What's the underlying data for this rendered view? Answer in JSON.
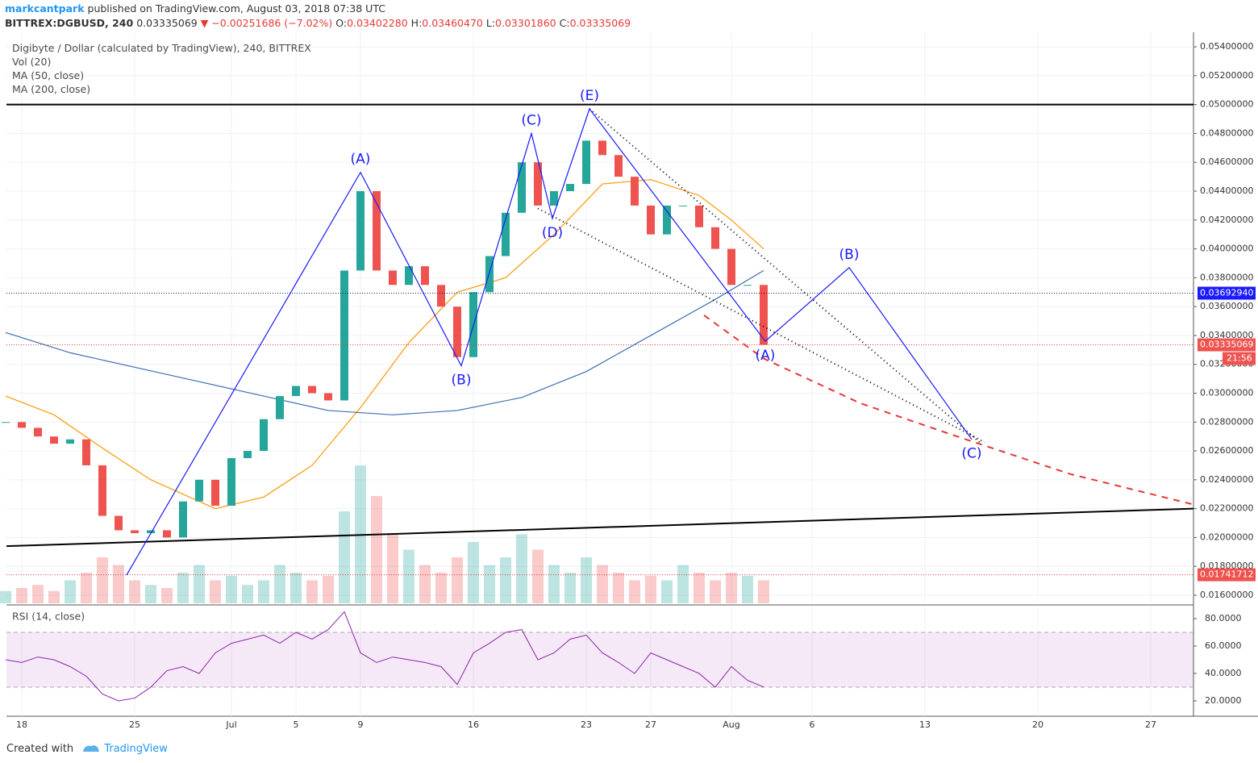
{
  "header": {
    "author": "markcantpark",
    "published": "published on TradingView.com, August 03, 2018 07:38 UTC",
    "symbol": "BITTREX:DGBUSD, 240",
    "last": "0.03335069",
    "change": "▼ −0.00251686 (−7.02%)",
    "ohlc": [
      {
        "label": "O:",
        "value": "0.03402280"
      },
      {
        "label": "H:",
        "value": "0.03460470"
      },
      {
        "label": "L:",
        "value": "0.03301860"
      },
      {
        "label": "C:",
        "value": "0.03335069"
      }
    ]
  },
  "legend": [
    "Digibyte / Dollar (calculated by TradingView), 240, BITTREX",
    "Vol (20)",
    "MA (50, close)",
    "MA (200, close)"
  ],
  "footer": {
    "created": "Created with",
    "brand": "TradingView"
  },
  "chart_data": [
    {
      "type": "candlestick",
      "grid": true,
      "up_color": "#26a69a",
      "down_color": "#ef5350",
      "xlim": [
        -0.95,
        72.65
      ],
      "ylim": [
        0.01544,
        0.05501
      ],
      "xticks": [
        {
          "value": 0,
          "label": "18"
        },
        {
          "value": 7,
          "label": "25"
        },
        {
          "value": 13,
          "label": "Jul"
        },
        {
          "value": 17,
          "label": "5"
        },
        {
          "value": 21,
          "label": "9"
        },
        {
          "value": 28,
          "label": "16"
        },
        {
          "value": 35,
          "label": "23"
        },
        {
          "value": 39,
          "label": "27"
        },
        {
          "value": 44,
          "label": "Aug"
        },
        {
          "value": 49,
          "label": "6"
        },
        {
          "value": 56,
          "label": "13"
        },
        {
          "value": 63,
          "label": "20"
        },
        {
          "value": 70,
          "label": "27"
        }
      ],
      "yticks": [
        {
          "value": 0.016,
          "label": "0.01600000"
        },
        {
          "value": 0.018,
          "label": "0.01800000"
        },
        {
          "value": 0.02,
          "label": "0.02000000"
        },
        {
          "value": 0.022,
          "label": "0.02200000"
        },
        {
          "value": 0.024,
          "label": "0.02400000"
        },
        {
          "value": 0.026,
          "label": "0.02600000"
        },
        {
          "value": 0.028,
          "label": "0.02800000"
        },
        {
          "value": 0.03,
          "label": "0.03000000"
        },
        {
          "value": 0.032,
          "label": "0.03200000"
        },
        {
          "value": 0.034,
          "label": "0.03400000"
        },
        {
          "value": 0.036,
          "label": "0.03600000"
        },
        {
          "value": 0.038,
          "label": "0.03800000"
        },
        {
          "value": 0.04,
          "label": "0.04000000"
        },
        {
          "value": 0.042,
          "label": "0.04200000"
        },
        {
          "value": 0.044,
          "label": "0.04400000"
        },
        {
          "value": 0.046,
          "label": "0.04600000"
        },
        {
          "value": 0.048,
          "label": "0.04800000"
        },
        {
          "value": 0.05,
          "label": "0.05000000"
        },
        {
          "value": 0.052,
          "label": "0.05200000"
        },
        {
          "value": 0.054,
          "label": "0.05400000"
        }
      ],
      "x": [
        -1,
        0,
        1,
        2,
        3,
        4,
        5,
        6,
        7,
        8,
        9,
        10,
        11,
        12,
        13,
        14,
        15,
        16,
        17,
        18,
        19,
        20,
        21,
        22,
        23,
        24,
        25,
        26,
        27,
        28,
        29,
        30,
        31,
        32,
        33,
        34,
        35,
        36,
        37,
        38,
        39,
        40,
        41,
        42,
        43,
        44,
        45,
        46
      ],
      "series": [
        {
          "name": "DGBUSD",
          "values": [
            0.028,
            0.0276,
            0.027,
            0.0265,
            0.0268,
            0.025,
            0.0215,
            0.0205,
            0.0203,
            0.0205,
            0.02,
            0.0225,
            0.024,
            0.0222,
            0.0255,
            0.026,
            0.0282,
            0.0298,
            0.0305,
            0.03,
            0.0295,
            0.0385,
            0.044,
            0.0385,
            0.0375,
            0.0388,
            0.0375,
            0.036,
            0.0325,
            0.037,
            0.0395,
            0.0425,
            0.046,
            0.043,
            0.044,
            0.0445,
            0.0475,
            0.0465,
            0.045,
            0.043,
            0.041,
            0.043,
            0.043,
            0.0415,
            0.04,
            0.0375,
            0.0375,
            0.03335
          ]
        }
      ],
      "volume": [
        8,
        10,
        12,
        8,
        15,
        20,
        30,
        25,
        15,
        12,
        10,
        20,
        25,
        15,
        18,
        12,
        15,
        25,
        20,
        15,
        18,
        60,
        90,
        70,
        45,
        35,
        25,
        20,
        30,
        40,
        25,
        30,
        45,
        35,
        25,
        20,
        30,
        25,
        20,
        15,
        18,
        15,
        25,
        20,
        15,
        20,
        18,
        15
      ],
      "ma": [
        {
          "color": "#ff9800",
          "x": [
            -1,
            2,
            5,
            8,
            12,
            15,
            18,
            21,
            24,
            27,
            30,
            33,
            36,
            39,
            42,
            44,
            46
          ],
          "values": [
            0.0298,
            0.0285,
            0.0262,
            0.024,
            0.022,
            0.0228,
            0.025,
            0.029,
            0.0335,
            0.037,
            0.038,
            0.041,
            0.0445,
            0.0448,
            0.0437,
            0.042,
            0.04
          ]
        },
        {
          "color": "#3f6fb0",
          "x": [
            -1,
            3,
            7,
            11,
            15,
            19,
            23,
            27,
            31,
            35,
            39,
            43,
            46
          ],
          "values": [
            0.0342,
            0.0328,
            0.0318,
            0.0308,
            0.0298,
            0.0288,
            0.0285,
            0.0288,
            0.0297,
            0.0315,
            0.034,
            0.0365,
            0.0385
          ]
        }
      ],
      "waves": {
        "color": "#1a1aff",
        "x": [
          6.5,
          21,
          27.25,
          31.6,
          32.9,
          35.2,
          46.1,
          51.3,
          58.9
        ],
        "values": [
          0.0174,
          0.0453,
          0.0319,
          0.048,
          0.0421,
          0.0497,
          0.0336,
          0.0387,
          0.0268
        ],
        "labels": [
          null,
          "(A)",
          "(B)",
          "(C)",
          "(D)",
          "(E)",
          "(A)",
          "(B)",
          "(C)"
        ]
      },
      "channel": [
        {
          "x": [
            35.2,
            59.5
          ],
          "values": [
            0.0497,
            0.0265
          ]
        },
        {
          "x": [
            32,
            59.7
          ],
          "values": [
            0.0428,
            0.0266
          ]
        }
      ],
      "projection": {
        "color": "#e53935",
        "x": [
          42.3,
          46,
          52,
          58,
          65,
          72.6
        ],
        "values": [
          0.0354,
          0.0324,
          0.0293,
          0.027,
          0.0244,
          0.0223
        ]
      },
      "lines": [
        {
          "color": "#000000",
          "x": [
            -0.95,
            72.65
          ],
          "values": [
            0.05,
            0.05
          ]
        },
        {
          "color": "#000000",
          "x": [
            -0.95,
            72.65
          ],
          "values": [
            0.0194,
            0.022
          ]
        }
      ],
      "price_lines": [
        {
          "value": 0.0369294,
          "label": "0.03692940",
          "color": "#1a1aff",
          "line": "#0d1b5e"
        },
        {
          "value": 0.03335069,
          "label": "0.03335069",
          "color": "#ef5350",
          "line": "#e53935",
          "countdown": "21:56"
        },
        {
          "value": 0.01741712,
          "label": "0.01741712",
          "color": "#ef5350",
          "line": "#e53935"
        }
      ]
    },
    {
      "type": "line",
      "title": "RSI (14, close)",
      "color": "#8e24aa",
      "band": [
        30,
        70
      ],
      "ylim": [
        8.8,
        87.06
      ],
      "yticks": [
        {
          "value": 20,
          "label": "20.0000"
        },
        {
          "value": 40,
          "label": "40.0000"
        },
        {
          "value": 60,
          "label": "60.0000"
        },
        {
          "value": 80,
          "label": "80.0000"
        }
      ],
      "values": [
        50,
        48,
        52,
        50,
        45,
        38,
        25,
        20,
        22,
        30,
        42,
        45,
        40,
        55,
        62,
        65,
        68,
        62,
        70,
        65,
        72,
        85,
        55,
        48,
        52,
        50,
        48,
        45,
        32,
        55,
        62,
        70,
        72,
        50,
        55,
        65,
        68,
        55,
        48,
        40,
        55,
        50,
        45,
        40,
        30,
        45,
        35,
        30
      ]
    }
  ]
}
